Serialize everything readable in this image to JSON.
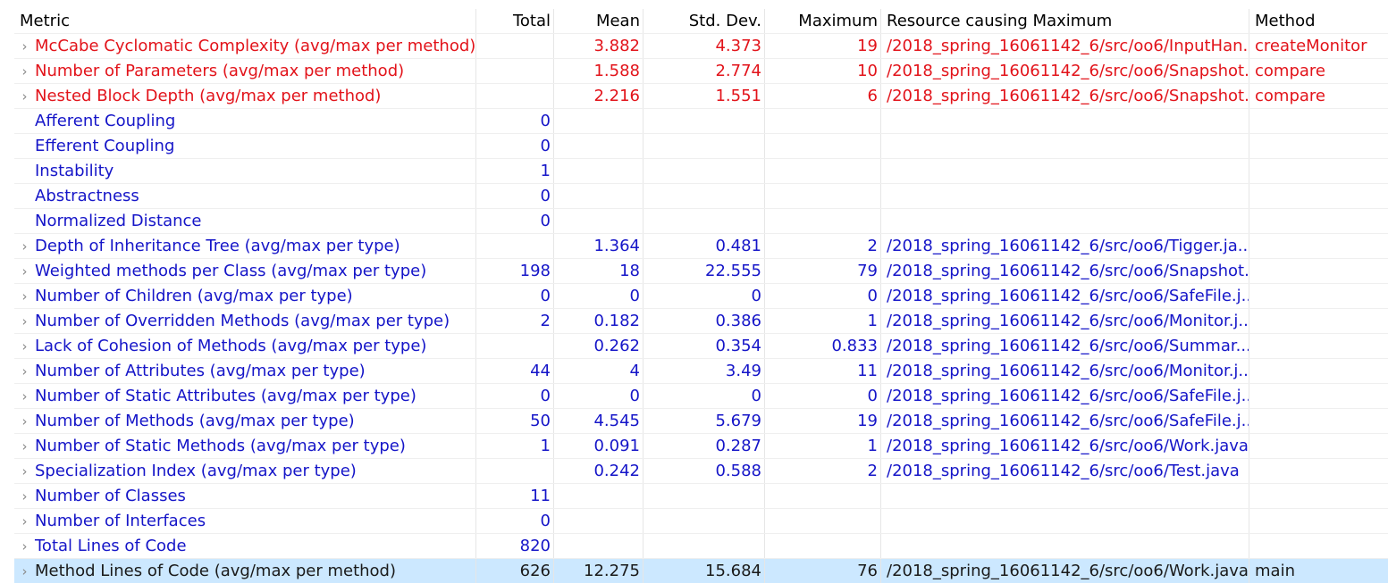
{
  "columns": {
    "metric": "Metric",
    "total": "Total",
    "mean": "Mean",
    "std_dev": "Std. Dev.",
    "maximum": "Maximum",
    "resource": "Resource causing Maximum",
    "method": "Method"
  },
  "colors": {
    "violation": "#e2131a",
    "normal": "#1515c8",
    "selected_row_bg": "#cce8ff"
  },
  "rows": [
    {
      "metric": "McCabe Cyclomatic Complexity (avg/max per method)",
      "total": "",
      "mean": "3.882",
      "std": "4.373",
      "max": "19",
      "resource": "/2018_spring_16061142_6/src/oo6/InputHan...",
      "method": "createMonitor",
      "expandable": true,
      "status": "red"
    },
    {
      "metric": "Number of Parameters (avg/max per method)",
      "total": "",
      "mean": "1.588",
      "std": "2.774",
      "max": "10",
      "resource": "/2018_spring_16061142_6/src/oo6/Snapshot...",
      "method": "compare",
      "expandable": true,
      "status": "red"
    },
    {
      "metric": "Nested Block Depth (avg/max per method)",
      "total": "",
      "mean": "2.216",
      "std": "1.551",
      "max": "6",
      "resource": "/2018_spring_16061142_6/src/oo6/Snapshot...",
      "method": "compare",
      "expandable": true,
      "status": "red"
    },
    {
      "metric": "Afferent Coupling",
      "total": "0",
      "mean": "",
      "std": "",
      "max": "",
      "resource": "",
      "method": "",
      "expandable": false,
      "status": "blue"
    },
    {
      "metric": "Efferent Coupling",
      "total": "0",
      "mean": "",
      "std": "",
      "max": "",
      "resource": "",
      "method": "",
      "expandable": false,
      "status": "blue"
    },
    {
      "metric": "Instability",
      "total": "1",
      "mean": "",
      "std": "",
      "max": "",
      "resource": "",
      "method": "",
      "expandable": false,
      "status": "blue"
    },
    {
      "metric": "Abstractness",
      "total": "0",
      "mean": "",
      "std": "",
      "max": "",
      "resource": "",
      "method": "",
      "expandable": false,
      "status": "blue"
    },
    {
      "metric": "Normalized Distance",
      "total": "0",
      "mean": "",
      "std": "",
      "max": "",
      "resource": "",
      "method": "",
      "expandable": false,
      "status": "blue"
    },
    {
      "metric": "Depth of Inheritance Tree (avg/max per type)",
      "total": "",
      "mean": "1.364",
      "std": "0.481",
      "max": "2",
      "resource": "/2018_spring_16061142_6/src/oo6/Tigger.ja...",
      "method": "",
      "expandable": true,
      "status": "blue"
    },
    {
      "metric": "Weighted methods per Class (avg/max per type)",
      "total": "198",
      "mean": "18",
      "std": "22.555",
      "max": "79",
      "resource": "/2018_spring_16061142_6/src/oo6/Snapshot...",
      "method": "",
      "expandable": true,
      "status": "blue"
    },
    {
      "metric": "Number of Children (avg/max per type)",
      "total": "0",
      "mean": "0",
      "std": "0",
      "max": "0",
      "resource": "/2018_spring_16061142_6/src/oo6/SafeFile.j...",
      "method": "",
      "expandable": true,
      "status": "blue"
    },
    {
      "metric": "Number of Overridden Methods (avg/max per type)",
      "total": "2",
      "mean": "0.182",
      "std": "0.386",
      "max": "1",
      "resource": "/2018_spring_16061142_6/src/oo6/Monitor.j...",
      "method": "",
      "expandable": true,
      "status": "blue"
    },
    {
      "metric": "Lack of Cohesion of Methods (avg/max per type)",
      "total": "",
      "mean": "0.262",
      "std": "0.354",
      "max": "0.833",
      "resource": "/2018_spring_16061142_6/src/oo6/Summar...",
      "method": "",
      "expandable": true,
      "status": "blue"
    },
    {
      "metric": "Number of Attributes (avg/max per type)",
      "total": "44",
      "mean": "4",
      "std": "3.49",
      "max": "11",
      "resource": "/2018_spring_16061142_6/src/oo6/Monitor.j...",
      "method": "",
      "expandable": true,
      "status": "blue"
    },
    {
      "metric": "Number of Static Attributes (avg/max per type)",
      "total": "0",
      "mean": "0",
      "std": "0",
      "max": "0",
      "resource": "/2018_spring_16061142_6/src/oo6/SafeFile.j...",
      "method": "",
      "expandable": true,
      "status": "blue"
    },
    {
      "metric": "Number of Methods (avg/max per type)",
      "total": "50",
      "mean": "4.545",
      "std": "5.679",
      "max": "19",
      "resource": "/2018_spring_16061142_6/src/oo6/SafeFile.j...",
      "method": "",
      "expandable": true,
      "status": "blue"
    },
    {
      "metric": "Number of Static Methods (avg/max per type)",
      "total": "1",
      "mean": "0.091",
      "std": "0.287",
      "max": "1",
      "resource": "/2018_spring_16061142_6/src/oo6/Work.java",
      "method": "",
      "expandable": true,
      "status": "blue"
    },
    {
      "metric": "Specialization Index (avg/max per type)",
      "total": "",
      "mean": "0.242",
      "std": "0.588",
      "max": "2",
      "resource": "/2018_spring_16061142_6/src/oo6/Test.java",
      "method": "",
      "expandable": true,
      "status": "blue"
    },
    {
      "metric": "Number of Classes",
      "total": "11",
      "mean": "",
      "std": "",
      "max": "",
      "resource": "",
      "method": "",
      "expandable": true,
      "status": "blue"
    },
    {
      "metric": "Number of Interfaces",
      "total": "0",
      "mean": "",
      "std": "",
      "max": "",
      "resource": "",
      "method": "",
      "expandable": true,
      "status": "blue"
    },
    {
      "metric": "Total Lines of Code",
      "total": "820",
      "mean": "",
      "std": "",
      "max": "",
      "resource": "",
      "method": "",
      "expandable": true,
      "status": "blue"
    },
    {
      "metric": "Method Lines of Code (avg/max per method)",
      "total": "626",
      "mean": "12.275",
      "std": "15.684",
      "max": "76",
      "resource": "/2018_spring_16061142_6/src/oo6/Work.java",
      "method": "main",
      "expandable": true,
      "status": "black",
      "selected": true
    }
  ]
}
